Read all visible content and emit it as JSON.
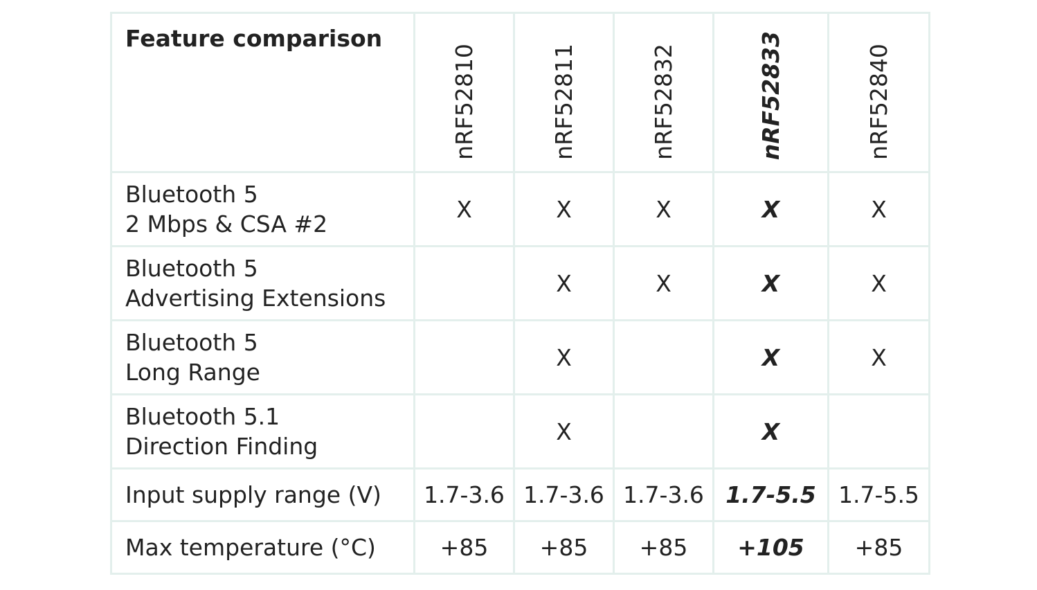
{
  "table": {
    "title": "Feature comparison",
    "columns": [
      "nRF52810",
      "nRF52811",
      "nRF52832",
      "nRF52833",
      "nRF52840"
    ],
    "highlight_column": "nRF52833",
    "rows": [
      {
        "line1": "Bluetooth 5",
        "line2": "2 Mbps & CSA #2",
        "cells": [
          "X",
          "X",
          "X",
          "X",
          "X"
        ]
      },
      {
        "line1": "Bluetooth 5",
        "line2": "Advertising Extensions",
        "cells": [
          "",
          "X",
          "X",
          "X",
          "X"
        ]
      },
      {
        "line1": "Bluetooth 5",
        "line2": "Long Range",
        "cells": [
          "",
          "X",
          "",
          "X",
          "X"
        ]
      },
      {
        "line1": "Bluetooth 5.1",
        "line2": "Direction Finding",
        "cells": [
          "",
          "X",
          "",
          "X",
          ""
        ]
      },
      {
        "label": "Input supply range (V)",
        "cells": [
          "1.7-3.6",
          "1.7-3.6",
          "1.7-3.6",
          "1.7-5.5",
          "1.7-5.5"
        ]
      },
      {
        "label": "Max temperature (°C)",
        "cells": [
          "+85",
          "+85",
          "+85",
          "+105",
          "+85"
        ]
      }
    ]
  },
  "colors": {
    "grid": "#e3efec",
    "text": "#222222"
  }
}
